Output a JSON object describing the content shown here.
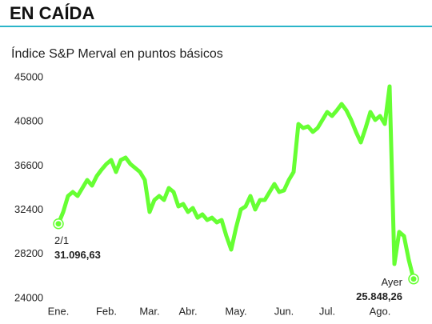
{
  "chart_data": {
    "type": "line",
    "title": "EN CAÍDA",
    "subtitle": "Índice S&P Merval en puntos básicos",
    "categories": [
      "Ene.",
      null,
      null,
      null,
      null,
      null,
      null,
      null,
      null,
      null,
      "Feb.",
      null,
      null,
      null,
      null,
      null,
      null,
      null,
      null,
      "Mar.",
      null,
      null,
      null,
      null,
      null,
      null,
      null,
      "Abr.",
      null,
      null,
      null,
      null,
      null,
      null,
      null,
      null,
      null,
      "May.",
      null,
      null,
      null,
      null,
      null,
      null,
      null,
      null,
      null,
      "Jun.",
      null,
      null,
      null,
      null,
      null,
      null,
      null,
      null,
      "Jul.",
      null,
      null,
      null,
      null,
      null,
      null,
      null,
      null,
      null,
      null,
      "Ago.",
      null,
      null,
      null,
      null,
      null,
      null,
      null
    ],
    "values": [
      31096.63,
      32220,
      33740,
      34120,
      33740,
      34500,
      35260,
      34730,
      35640,
      36250,
      36780,
      37160,
      36020,
      37160,
      37390,
      36780,
      36400,
      36020,
      35260,
      32220,
      33360,
      33740,
      33360,
      34500,
      34120,
      32750,
      32980,
      32220,
      32600,
      31680,
      31990,
      31460,
      31680,
      31230,
      31460,
      29930,
      28640,
      30700,
      32450,
      32750,
      33740,
      32450,
      33360,
      33360,
      34120,
      34880,
      34120,
      34270,
      35260,
      36020,
      40590,
      40210,
      40360,
      39830,
      40210,
      40970,
      41730,
      41350,
      41880,
      42490,
      41880,
      40970,
      39830,
      38840,
      40210,
      41730,
      40970,
      41350,
      40590,
      44160,
      27270,
      30320,
      29930,
      27650,
      25848.26
    ],
    "value_labels": [
      "31.096,63",
      null,
      null,
      null,
      null,
      null,
      null,
      null,
      null,
      null,
      null,
      null,
      null,
      null,
      null,
      null,
      null,
      null,
      null,
      null,
      null,
      null,
      null,
      null,
      null,
      null,
      null,
      null,
      null,
      null,
      null,
      null,
      null,
      null,
      null,
      null,
      null,
      null,
      null,
      null,
      null,
      null,
      null,
      null,
      null,
      null,
      null,
      null,
      null,
      null,
      null,
      null,
      null,
      null,
      null,
      null,
      null,
      null,
      null,
      null,
      null,
      null,
      null,
      null,
      null,
      null,
      null,
      null,
      null,
      null,
      null,
      null,
      null,
      null,
      "25.848,26"
    ],
    "annotations": [
      "2/1",
      "Ayer"
    ],
    "color": "#66ff33",
    "ylim": [
      24000,
      45000
    ],
    "yticks": [
      24000,
      28200,
      32400,
      36600,
      40800,
      45000
    ],
    "grid": false
  }
}
